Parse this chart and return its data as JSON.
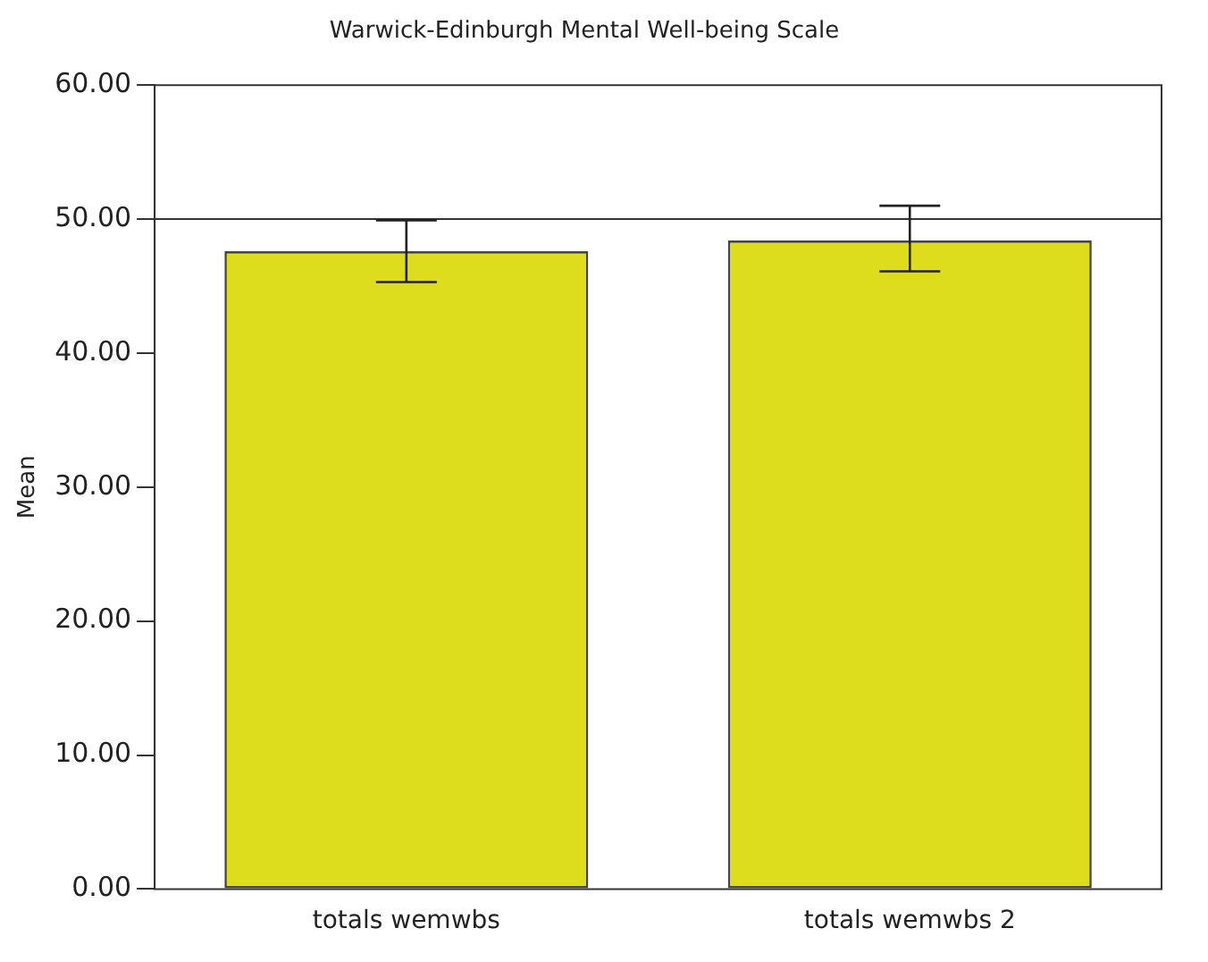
{
  "chart_data": {
    "type": "bar",
    "title": "Warwick-Edinburgh Mental Well-being Scale",
    "ylabel": "Mean",
    "categories": [
      "totals wemwbs",
      "totals wemwbs 2"
    ],
    "values": [
      47.6,
      48.4
    ],
    "errors": [
      [
        45.3,
        49.9
      ],
      [
        46.1,
        51.0
      ]
    ],
    "color": "#dddd1e",
    "ylim": [
      0,
      60
    ],
    "yticks": [
      {
        "value": 0,
        "label": "0.00"
      },
      {
        "value": 10,
        "label": "10.00"
      },
      {
        "value": 20,
        "label": "20.00"
      },
      {
        "value": 30,
        "label": "30.00"
      },
      {
        "value": 40,
        "label": "40.00"
      },
      {
        "value": 50,
        "label": "50.00"
      },
      {
        "value": 60,
        "label": "60.00"
      }
    ],
    "ref_lines": [
      {
        "axis": "y",
        "value": 50,
        "color": "#333333"
      }
    ],
    "grid": false,
    "legend": false
  }
}
